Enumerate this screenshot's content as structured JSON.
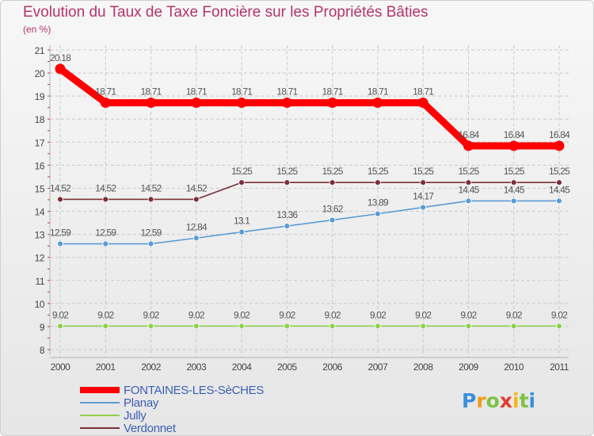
{
  "chart_data": {
    "type": "line",
    "title": "Evolution du Taux de Taxe Foncière sur les Propriétés Bâties",
    "subtitle": "(en %)",
    "x": [
      "2000",
      "2001",
      "2002",
      "2003",
      "2004",
      "2005",
      "2006",
      "2007",
      "2008",
      "2009",
      "2010",
      "2011"
    ],
    "yticks": [
      "8",
      "9",
      "10",
      "11",
      "12",
      "13",
      "14",
      "15",
      "16",
      "17",
      "18",
      "19",
      "20",
      "21"
    ],
    "ylim": [
      8,
      21
    ],
    "grid": true,
    "legend_position": "bottom-left",
    "series": [
      {
        "name": "FONTAINES-LES-SèCHES",
        "color": "#ff0000",
        "values": [
          20.18,
          18.71,
          18.71,
          18.71,
          18.71,
          18.71,
          18.71,
          18.71,
          18.71,
          16.84,
          16.84,
          16.84
        ],
        "labels": [
          "20.18",
          "18.71",
          "18.71",
          "18.71",
          "18.71",
          "18.71",
          "18.71",
          "18.71",
          "18.71",
          "16.84",
          "16.84",
          "16.84"
        ]
      },
      {
        "name": "Planay",
        "color": "#5b9bd5",
        "values": [
          12.59,
          12.59,
          12.59,
          12.84,
          13.1,
          13.36,
          13.62,
          13.89,
          14.17,
          14.45,
          14.45,
          14.45
        ],
        "labels": [
          "12.59",
          "12.59",
          "12.59",
          "12.84",
          "13.1",
          "13.36",
          "13.62",
          "13.89",
          "14.17",
          "14.45",
          "14.45",
          "14.45"
        ]
      },
      {
        "name": "Jully",
        "color": "#8fd14f",
        "values": [
          9.02,
          9.02,
          9.02,
          9.02,
          9.02,
          9.02,
          9.02,
          9.02,
          9.02,
          9.02,
          9.02,
          9.02
        ],
        "labels": [
          "9.02",
          "9.02",
          "9.02",
          "9.02",
          "9.02",
          "9.02",
          "9.02",
          "9.02",
          "9.02",
          "9.02",
          "9.02",
          "9.02"
        ]
      },
      {
        "name": "Verdonnet",
        "color": "#7b2f3a",
        "values": [
          14.52,
          14.52,
          14.52,
          14.52,
          15.25,
          15.25,
          15.25,
          15.25,
          15.25,
          15.25,
          15.25,
          15.25
        ],
        "labels": [
          "14.52",
          "14.52",
          "14.52",
          "14.52",
          "15.25",
          "15.25",
          "15.25",
          "15.25",
          "15.25",
          "15.25",
          "15.25",
          "15.25"
        ]
      }
    ]
  },
  "brand": {
    "letters": [
      "P",
      "r",
      "o",
      "x",
      "i",
      "t",
      "i"
    ],
    "colors": [
      "#3b8fd8",
      "#f29a1c",
      "#7dc242",
      "#e23a2e",
      "#f2b51c",
      "#7dc242",
      "#3b8fd8"
    ]
  }
}
